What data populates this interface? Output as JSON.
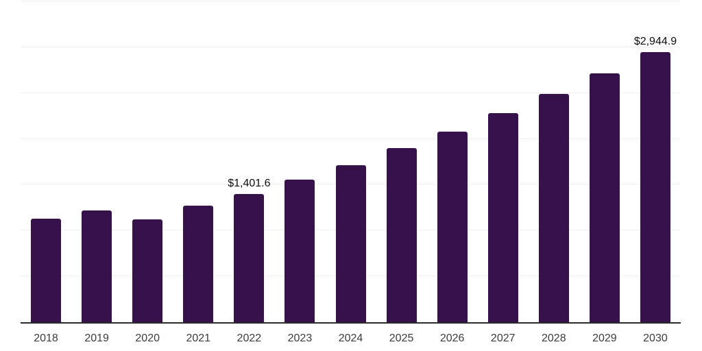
{
  "chart": {
    "background_color": "#ffffff",
    "bar_color": "#36124a",
    "gridline_color": "#f0f0f1",
    "axis_color": "#2b2b2b",
    "year_label_color": "#3b3b3b",
    "value_label_color": "#0d0d0d"
  },
  "chart_data": {
    "type": "bar",
    "categories": [
      "2018",
      "2019",
      "2020",
      "2021",
      "2022",
      "2023",
      "2024",
      "2025",
      "2026",
      "2027",
      "2028",
      "2029",
      "2030"
    ],
    "values": [
      1130,
      1220,
      1125,
      1270,
      1401.6,
      1555,
      1712,
      1900,
      2080,
      2280,
      2492,
      2716,
      2944.9
    ],
    "data_labels": {
      "2022": "$1,401.6",
      "2030": "$2,944.9"
    },
    "title": "",
    "xlabel": "",
    "ylabel": "",
    "ylim": [
      0,
      3500
    ],
    "grid_interval": 500,
    "grid": true,
    "legend_position": "none",
    "y_tick_labels_visible": false
  }
}
